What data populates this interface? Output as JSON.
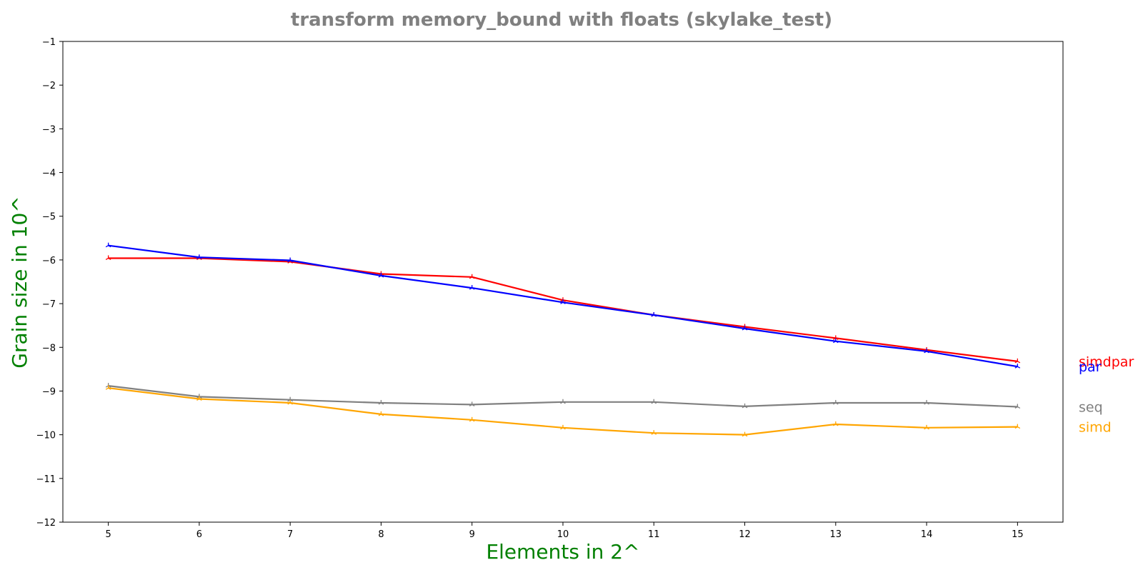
{
  "chart_data": {
    "type": "line",
    "title": "transform memory_bound with floats  (skylake_test)",
    "xlabel": "Elements in 2^",
    "ylabel": "Grain size in 10^",
    "xlim": [
      4.5,
      15.5
    ],
    "ylim": [
      -12,
      -1
    ],
    "x": [
      5,
      6,
      7,
      8,
      9,
      10,
      11,
      12,
      13,
      14,
      15
    ],
    "x_ticks": [
      "5",
      "6",
      "7",
      "8",
      "9",
      "10",
      "11",
      "12",
      "13",
      "14",
      "15"
    ],
    "y_ticks": [
      "−1",
      "−2",
      "−3",
      "−4",
      "−5",
      "−6",
      "−7",
      "−8",
      "−9",
      "−10",
      "−11",
      "−12"
    ],
    "y_tick_values": [
      -1,
      -2,
      -3,
      -4,
      -5,
      -6,
      -7,
      -8,
      -9,
      -10,
      -11,
      -12
    ],
    "grid": false,
    "legend": "inline labels at right end of lines",
    "marker": "tri-star",
    "series": [
      {
        "name": "simdpar",
        "color": "#ff0000",
        "values": [
          -5.96,
          -5.96,
          -6.04,
          -6.32,
          -6.39,
          -6.92,
          -7.26,
          -7.53,
          -7.79,
          -8.06,
          -8.32
        ]
      },
      {
        "name": "par",
        "color": "#0000ff",
        "values": [
          -5.67,
          -5.94,
          -6.01,
          -6.36,
          -6.64,
          -6.97,
          -7.26,
          -7.57,
          -7.86,
          -8.09,
          -8.44
        ]
      },
      {
        "name": "seq",
        "color": "#808080",
        "values": [
          -8.88,
          -9.13,
          -9.2,
          -9.27,
          -9.31,
          -9.25,
          -9.25,
          -9.35,
          -9.27,
          -9.27,
          -9.36
        ]
      },
      {
        "name": "simd",
        "color": "#ffa500",
        "values": [
          -8.93,
          -9.18,
          -9.27,
          -9.53,
          -9.66,
          -9.84,
          -9.96,
          -10.0,
          -9.76,
          -9.84,
          -9.82
        ]
      }
    ]
  }
}
